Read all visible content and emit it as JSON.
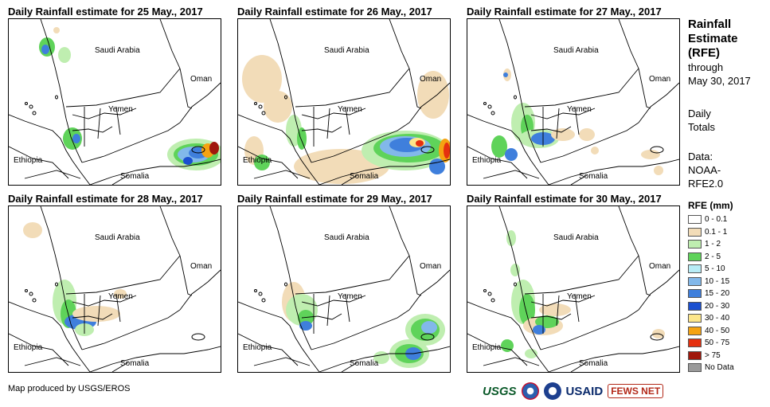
{
  "panels": [
    {
      "title": "Daily Rainfall estimate for 25 May., 2017"
    },
    {
      "title": "Daily Rainfall estimate for 26 May., 2017"
    },
    {
      "title": "Daily Rainfall estimate for 27 May., 2017"
    },
    {
      "title": "Daily Rainfall estimate for 28 May., 2017"
    },
    {
      "title": "Daily Rainfall estimate for 29 May., 2017"
    },
    {
      "title": "Daily Rainfall estimate for 30 May., 2017"
    }
  ],
  "map_labels": {
    "saudi": "Saudi Arabia",
    "oman": "Oman",
    "yemen": "Yemen",
    "ethiopia": "Ethiopia",
    "somalia": "Somalia"
  },
  "sidebar": {
    "title_line1": "Rainfall",
    "title_line2": "Estimate",
    "title_line3": "(RFE)",
    "through": "through",
    "date": "May 30, 2017",
    "daily": "Daily",
    "totals": "Totals",
    "data_label": "Data:",
    "source_line1": "NOAA-",
    "source_line2": "RFE2.0"
  },
  "legend": {
    "title": "RFE (mm)",
    "items": [
      {
        "label": "0 - 0.1",
        "color": "#ffffff"
      },
      {
        "label": "0.1 - 1",
        "color": "#f2dcb8"
      },
      {
        "label": "1 - 2",
        "color": "#bfeeb0"
      },
      {
        "label": "2 - 5",
        "color": "#5fd35a"
      },
      {
        "label": "5 - 10",
        "color": "#b8ecf6"
      },
      {
        "label": "10 - 15",
        "color": "#82b8ea"
      },
      {
        "label": "15 - 20",
        "color": "#3f7fdc"
      },
      {
        "label": "20 - 30",
        "color": "#1a4fd0"
      },
      {
        "label": "30 - 40",
        "color": "#fde68a"
      },
      {
        "label": "40 - 50",
        "color": "#f5a312"
      },
      {
        "label": "50 - 75",
        "color": "#e5300f"
      },
      {
        "label": "> 75",
        "color": "#a0180c"
      },
      {
        "label": "No Data",
        "color": "#9a9a9a"
      }
    ]
  },
  "credit": "Map produced by USGS/EROS",
  "logos": {
    "usgs": "USGS",
    "usaid": "USAID",
    "fews": "FEWS NET"
  }
}
